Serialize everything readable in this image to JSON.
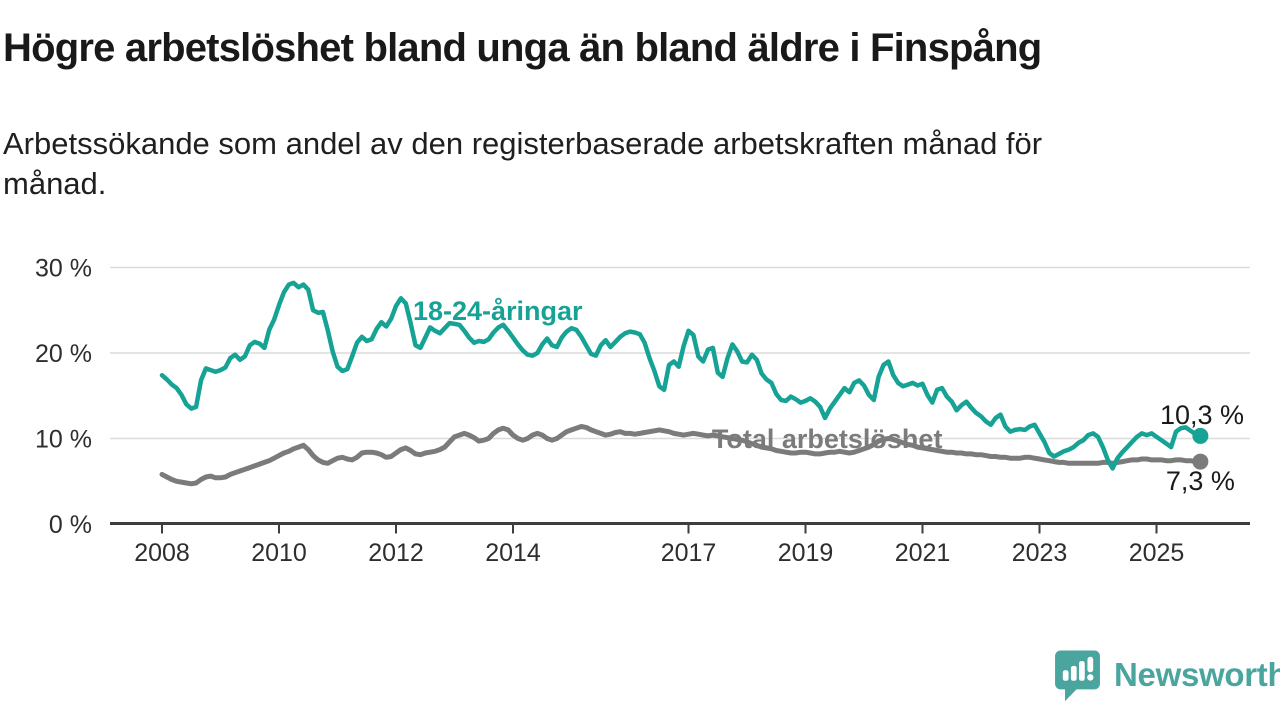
{
  "header": {
    "title": "Högre arbetslöshet bland unga än bland äldre i Finspång",
    "subtitle": "Arbetssökande som andel av den registerbaserade arbetskraften månad för månad.",
    "subtitle_lines": [
      "Arbetssökande som andel av den registerbaserade arbetskraften månad för",
      "månad."
    ]
  },
  "footer": {
    "brand": "Newsworthy"
  },
  "colors": {
    "youth": "#16a294",
    "total": "#7b7b7b",
    "label_text": "#1a1a1a",
    "axis": "#3d3d3d",
    "grid": "#dcdcdc",
    "tick_label": "#2e2e2e",
    "logo": "#4aa59e"
  },
  "chart_data": {
    "type": "line",
    "title": "Högre arbetslöshet bland unga än bland äldre i Finspång",
    "subtitle": "Arbetssökande som andel av den registerbaserade arbetskraften månad för månad.",
    "unit": "%",
    "grid": true,
    "x_axis": {
      "start": "2008-01",
      "end": "2025-10",
      "frequency": "monthly",
      "tick_years": [
        2008,
        2010,
        2012,
        2014,
        2017,
        2019,
        2021,
        2023,
        2025
      ],
      "tick_labels": [
        "2008",
        "2010",
        "2012",
        "2014",
        "2017",
        "2019",
        "2021",
        "2023",
        "2025"
      ]
    },
    "y_axis": {
      "ticks": [
        0,
        10,
        20,
        30
      ],
      "tick_labels": [
        "0 %",
        "10 %",
        "20 %",
        "30 %"
      ],
      "ylim": [
        0,
        31
      ]
    },
    "series": [
      {
        "name": "18-24-åringar",
        "color_key": "youth",
        "end_value": 10.3,
        "end_label": "10,3 %",
        "values": [
          17.4,
          16.9,
          16.3,
          15.9,
          15.1,
          14.0,
          13.5,
          13.7,
          16.8,
          18.2,
          18.0,
          17.8,
          18.0,
          18.3,
          19.4,
          19.8,
          19.2,
          19.6,
          20.9,
          21.3,
          21.1,
          20.6,
          22.7,
          23.9,
          25.6,
          27.1,
          28.0,
          28.2,
          27.7,
          28.0,
          27.4,
          25.0,
          24.7,
          24.8,
          22.7,
          20.2,
          18.4,
          17.9,
          18.1,
          19.6,
          21.2,
          21.9,
          21.4,
          21.6,
          22.8,
          23.6,
          23.1,
          24.0,
          25.5,
          26.4,
          25.8,
          23.5,
          20.9,
          20.6,
          21.8,
          23.0,
          22.6,
          22.3,
          22.9,
          23.5,
          23.4,
          23.3,
          22.6,
          21.8,
          21.2,
          21.4,
          21.3,
          21.6,
          22.4,
          23.0,
          23.3,
          22.6,
          21.8,
          21.0,
          20.3,
          19.8,
          19.7,
          20.0,
          21.0,
          21.7,
          20.9,
          20.7,
          21.8,
          22.5,
          22.9,
          22.7,
          21.9,
          20.9,
          19.9,
          19.7,
          20.9,
          21.5,
          20.7,
          21.3,
          21.9,
          22.3,
          22.5,
          22.4,
          22.2,
          21.2,
          19.4,
          17.9,
          16.1,
          15.7,
          18.6,
          19.0,
          18.4,
          20.8,
          22.6,
          22.1,
          19.6,
          19.0,
          20.4,
          20.6,
          17.7,
          17.2,
          19.4,
          21.0,
          20.2,
          19.0,
          18.9,
          19.8,
          19.2,
          17.6,
          16.9,
          16.5,
          15.2,
          14.5,
          14.4,
          14.9,
          14.6,
          14.2,
          14.4,
          14.7,
          14.3,
          13.7,
          12.4,
          13.5,
          14.3,
          15.1,
          15.9,
          15.4,
          16.5,
          16.8,
          16.2,
          15.1,
          14.5,
          17.2,
          18.6,
          19.0,
          17.4,
          16.5,
          16.1,
          16.3,
          16.5,
          16.2,
          16.4,
          15.1,
          14.2,
          15.7,
          15.9,
          14.9,
          14.3,
          13.3,
          13.9,
          14.3,
          13.6,
          13.0,
          12.6,
          12.0,
          11.6,
          12.4,
          12.8,
          11.4,
          10.8,
          11.0,
          11.1,
          11.0,
          11.4,
          11.6,
          10.6,
          9.6,
          8.3,
          7.9,
          8.2,
          8.5,
          8.7,
          9.0,
          9.5,
          9.8,
          10.4,
          10.6,
          10.2,
          9.0,
          7.5,
          6.5,
          7.7,
          8.4,
          9.0,
          9.6,
          10.2,
          10.6,
          10.4,
          10.6,
          10.2,
          9.8,
          9.4,
          9.0,
          10.8,
          11.2,
          11.3,
          10.9,
          10.5,
          10.3
        ]
      },
      {
        "name": "Total arbetslöshet",
        "color_key": "total",
        "end_value": 7.3,
        "end_label": "7,3 %",
        "values": [
          5.8,
          5.5,
          5.2,
          5.0,
          4.9,
          4.8,
          4.7,
          4.8,
          5.2,
          5.5,
          5.6,
          5.4,
          5.4,
          5.5,
          5.8,
          6.0,
          6.2,
          6.4,
          6.6,
          6.8,
          7.0,
          7.2,
          7.4,
          7.7,
          8.0,
          8.3,
          8.5,
          8.8,
          9.0,
          9.2,
          8.7,
          8.0,
          7.5,
          7.2,
          7.1,
          7.4,
          7.7,
          7.8,
          7.6,
          7.5,
          7.8,
          8.3,
          8.4,
          8.4,
          8.3,
          8.1,
          7.8,
          7.9,
          8.3,
          8.7,
          8.9,
          8.6,
          8.2,
          8.1,
          8.3,
          8.4,
          8.5,
          8.7,
          9.0,
          9.6,
          10.2,
          10.4,
          10.6,
          10.4,
          10.1,
          9.7,
          9.8,
          10.0,
          10.6,
          11.0,
          11.2,
          11.0,
          10.4,
          10.0,
          9.8,
          10.0,
          10.4,
          10.6,
          10.4,
          10.0,
          9.8,
          10.0,
          10.4,
          10.8,
          11.0,
          11.2,
          11.4,
          11.3,
          11.0,
          10.8,
          10.6,
          10.4,
          10.5,
          10.7,
          10.8,
          10.6,
          10.6,
          10.5,
          10.6,
          10.7,
          10.8,
          10.9,
          11.0,
          10.9,
          10.8,
          10.6,
          10.5,
          10.4,
          10.5,
          10.6,
          10.5,
          10.4,
          10.3,
          10.4,
          10.3,
          10.2,
          10.1,
          10.0,
          9.9,
          9.8,
          9.6,
          9.4,
          9.2,
          9.0,
          8.9,
          8.8,
          8.6,
          8.5,
          8.4,
          8.3,
          8.3,
          8.4,
          8.4,
          8.3,
          8.2,
          8.2,
          8.3,
          8.4,
          8.4,
          8.5,
          8.4,
          8.3,
          8.4,
          8.6,
          8.8,
          9.0,
          9.3,
          9.7,
          9.9,
          10.0,
          9.9,
          9.7,
          9.5,
          9.3,
          9.2,
          9.0,
          8.9,
          8.8,
          8.7,
          8.6,
          8.5,
          8.4,
          8.4,
          8.3,
          8.3,
          8.2,
          8.2,
          8.1,
          8.1,
          8.0,
          7.9,
          7.9,
          7.8,
          7.8,
          7.7,
          7.7,
          7.7,
          7.8,
          7.8,
          7.7,
          7.6,
          7.5,
          7.4,
          7.3,
          7.2,
          7.2,
          7.1,
          7.1,
          7.1,
          7.1,
          7.1,
          7.1,
          7.1,
          7.2,
          7.2,
          7.1,
          7.2,
          7.3,
          7.4,
          7.5,
          7.5,
          7.6,
          7.6,
          7.5,
          7.5,
          7.5,
          7.4,
          7.4,
          7.5,
          7.5,
          7.4,
          7.4,
          7.3,
          7.3
        ]
      }
    ],
    "annotations": [
      {
        "id": "youth-series-label",
        "text": "18-24-åringar",
        "year": 2012.29,
        "pct": 23.86,
        "color_key": "youth",
        "weight": "bold"
      },
      {
        "id": "total-series-label",
        "text": "Total arbetslöshet",
        "year": 2017.4,
        "pct": 8.89,
        "color_key": "total",
        "weight": "bold"
      },
      {
        "id": "youth-end-label",
        "text": "10,3 %",
        "year": 2025.06,
        "pct": 11.7,
        "color_key": "label_text",
        "weight": "normal"
      },
      {
        "id": "total-end-label",
        "text": "7,3 %",
        "year": 2025.16,
        "pct": 3.98,
        "color_key": "label_text",
        "weight": "normal"
      }
    ]
  }
}
